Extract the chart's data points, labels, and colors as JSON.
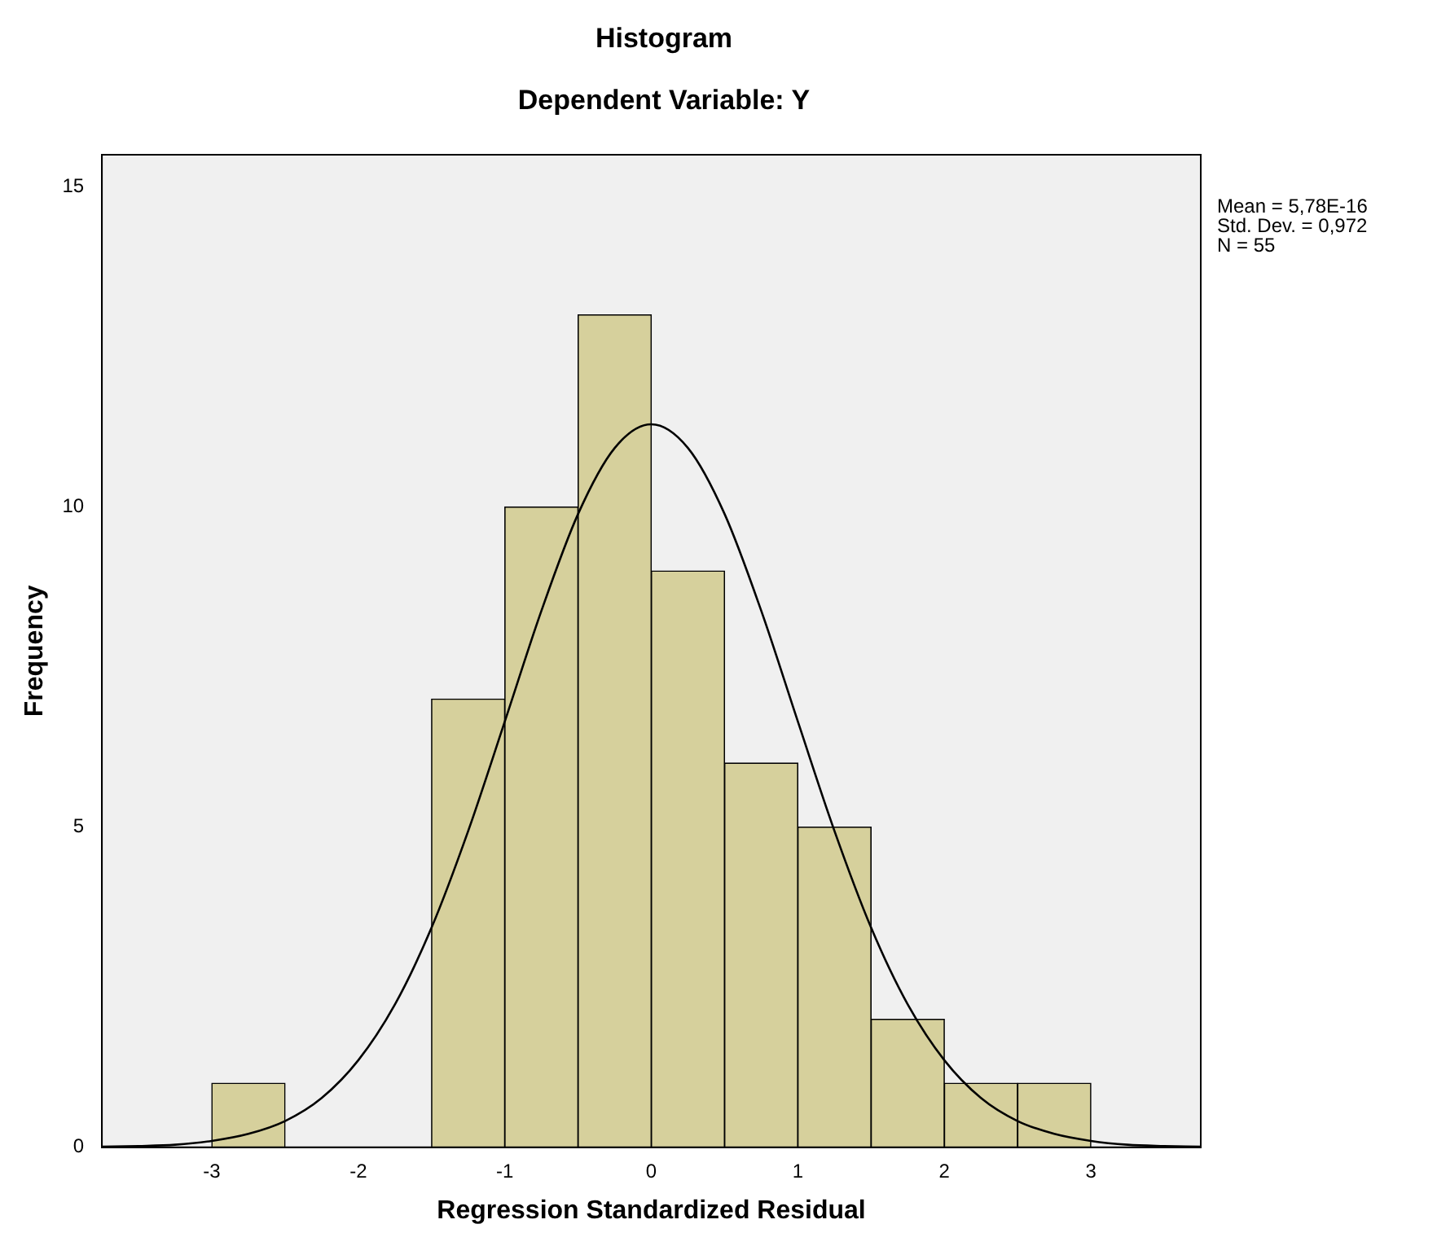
{
  "chart_data": {
    "type": "histogram",
    "title": "Histogram",
    "subtitle": "Dependent Variable: Y",
    "xlabel": "Regression Standardized Residual",
    "ylabel": "Frequency",
    "bins": [
      -3,
      -2.5,
      -2,
      -1.5,
      -1,
      -0.5,
      0,
      0.5,
      1,
      1.5,
      2,
      2.5,
      3
    ],
    "values": [
      1,
      0,
      0,
      7,
      10,
      13,
      9,
      6,
      5,
      2,
      1,
      1
    ],
    "color": "#d6d09c",
    "series": [
      {
        "type": "line",
        "color": "#000000",
        "x": [
          -3.75,
          -3.5,
          -3.25,
          -3,
          -2.75,
          -2.5,
          -2.25,
          -2,
          -1.75,
          -1.5,
          -1.25,
          -1,
          -0.75,
          -0.5,
          -0.25,
          0,
          0.25,
          0.5,
          0.75,
          1,
          1.25,
          1.5,
          1.75,
          2,
          2.25,
          2.5,
          2.75,
          3,
          3.25,
          3.5,
          3.75
        ],
        "values": [
          0.01,
          0.02,
          0.04,
          0.1,
          0.21,
          0.41,
          0.77,
          1.36,
          2.23,
          3.43,
          4.94,
          6.65,
          8.38,
          9.89,
          10.92,
          11.29,
          10.92,
          9.89,
          8.38,
          6.65,
          4.94,
          3.43,
          2.23,
          1.36,
          0.77,
          0.41,
          0.21,
          0.1,
          0.04,
          0.02,
          0.01
        ]
      }
    ],
    "xlim": [
      -3.75,
      3.75
    ],
    "ylim": [
      0,
      15.5
    ],
    "xticks": [
      -3,
      -2,
      -1,
      0,
      1,
      2,
      3
    ],
    "yticks": [
      0,
      5,
      10,
      15
    ],
    "grid": false,
    "legend": false,
    "marker": "none",
    "annotations": [
      "Mean = 5,78E-16",
      "Std. Dev. = 0,972",
      "N = 55"
    ]
  }
}
